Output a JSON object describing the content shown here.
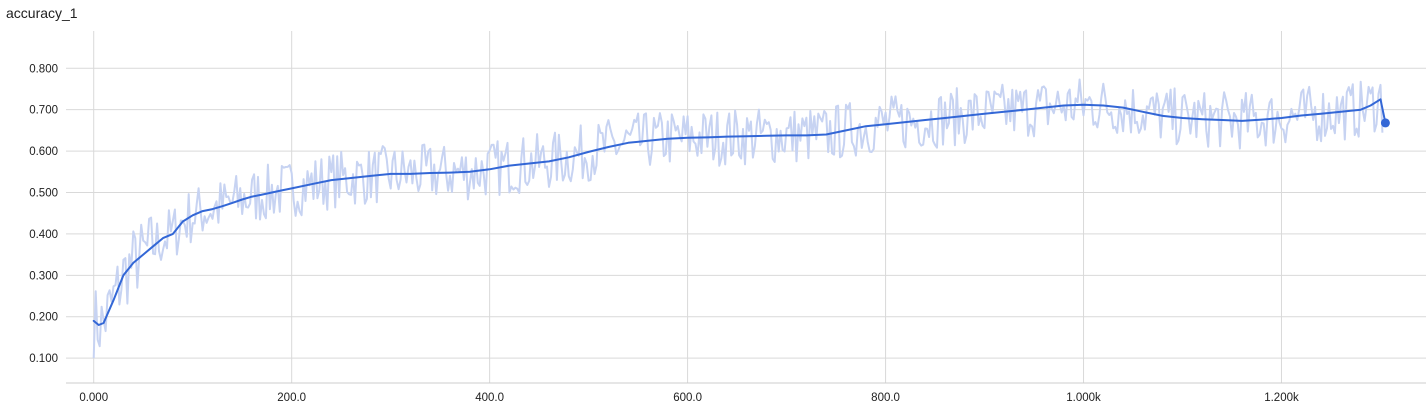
{
  "chart_data": {
    "type": "line",
    "title": "accuracy_1",
    "xlabel": "",
    "ylabel": "",
    "xlim": [
      -28,
      1346
    ],
    "ylim": [
      0.04,
      0.89
    ],
    "x_ticks": [
      {
        "value": 0,
        "label": "0.000"
      },
      {
        "value": 200,
        "label": "200.0"
      },
      {
        "value": 400,
        "label": "400.0"
      },
      {
        "value": 600,
        "label": "600.0"
      },
      {
        "value": 800,
        "label": "800.0"
      },
      {
        "value": 1000,
        "label": "1.000k"
      },
      {
        "value": 1200,
        "label": "1.200k"
      }
    ],
    "y_ticks": [
      {
        "value": 0.1,
        "label": "0.100"
      },
      {
        "value": 0.2,
        "label": "0.200"
      },
      {
        "value": 0.3,
        "label": "0.300"
      },
      {
        "value": 0.4,
        "label": "0.400"
      },
      {
        "value": 0.5,
        "label": "0.500"
      },
      {
        "value": 0.6,
        "label": "0.600"
      },
      {
        "value": 0.7,
        "label": "0.700"
      },
      {
        "value": 0.8,
        "label": "0.800"
      }
    ],
    "grid": true,
    "legend": "none",
    "colors": {
      "smoothed": "#3367d6",
      "raw": "#c7d3f2",
      "grid": "#d9d9d9",
      "axis": "#cccccc"
    },
    "series": [
      {
        "values_style": "smoothed",
        "x": [
          0,
          5,
          10,
          20,
          30,
          40,
          50,
          60,
          70,
          80,
          90,
          100,
          110,
          120,
          130,
          140,
          150,
          160,
          170,
          180,
          190,
          200,
          220,
          240,
          260,
          280,
          300,
          320,
          340,
          360,
          380,
          400,
          420,
          440,
          460,
          480,
          500,
          520,
          540,
          560,
          580,
          600,
          620,
          640,
          660,
          680,
          700,
          720,
          740,
          760,
          780,
          800,
          820,
          840,
          860,
          880,
          900,
          920,
          940,
          960,
          980,
          1000,
          1020,
          1040,
          1060,
          1080,
          1100,
          1120,
          1140,
          1160,
          1180,
          1200,
          1220,
          1240,
          1260,
          1280,
          1290,
          1300,
          1305
        ],
        "y": [
          0.19,
          0.18,
          0.185,
          0.24,
          0.3,
          0.33,
          0.35,
          0.37,
          0.39,
          0.4,
          0.43,
          0.445,
          0.455,
          0.46,
          0.467,
          0.475,
          0.483,
          0.49,
          0.495,
          0.5,
          0.505,
          0.51,
          0.52,
          0.53,
          0.535,
          0.54,
          0.545,
          0.545,
          0.547,
          0.548,
          0.55,
          0.556,
          0.565,
          0.57,
          0.575,
          0.585,
          0.598,
          0.61,
          0.62,
          0.625,
          0.63,
          0.632,
          0.633,
          0.635,
          0.636,
          0.637,
          0.638,
          0.638,
          0.64,
          0.65,
          0.66,
          0.665,
          0.67,
          0.675,
          0.68,
          0.685,
          0.69,
          0.695,
          0.7,
          0.705,
          0.71,
          0.712,
          0.71,
          0.705,
          0.695,
          0.685,
          0.68,
          0.677,
          0.675,
          0.673,
          0.676,
          0.68,
          0.686,
          0.69,
          0.695,
          0.7,
          0.71,
          0.725,
          0.668
        ]
      }
    ]
  }
}
